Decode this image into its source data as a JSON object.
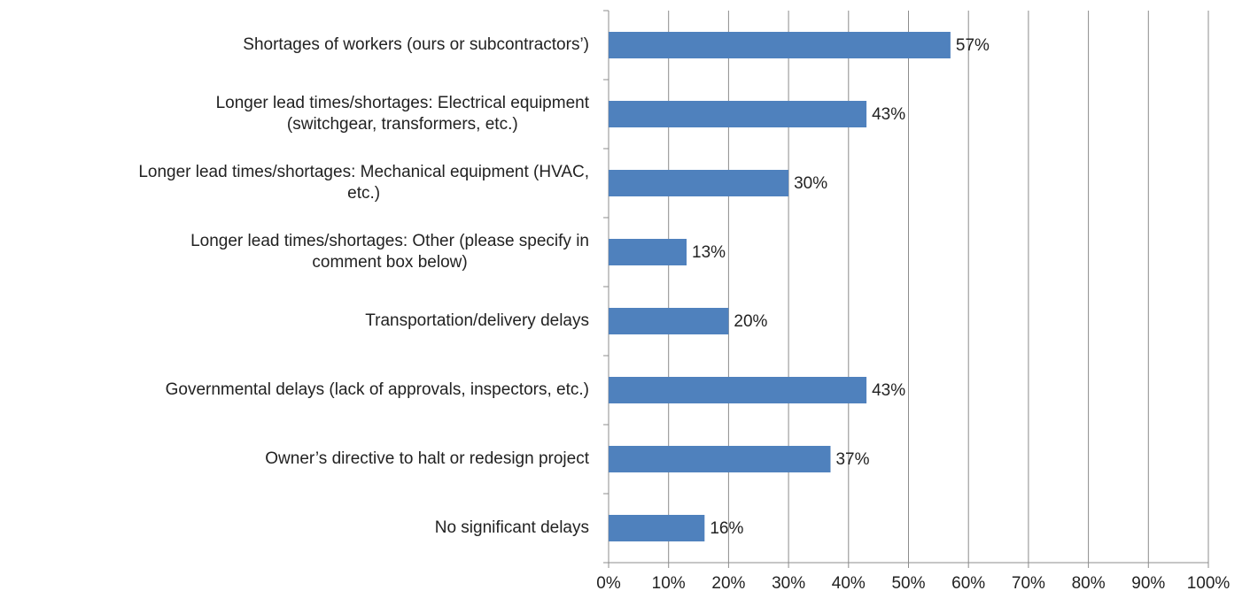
{
  "chart_data": {
    "type": "bar",
    "orientation": "horizontal",
    "categories": [
      "Shortages of workers (ours or subcontractors’)",
      "Longer lead times/shortages: Electrical equipment\n(switchgear, transformers, etc.)",
      "Longer lead times/shortages: Mechanical equipment (HVAC,\netc.)",
      "Longer lead times/shortages: Other (please specify in\ncomment box below)",
      "Transportation/delivery delays",
      "Governmental delays (lack of approvals, inspectors, etc.)",
      "Owner’s directive to halt or redesign project",
      "No significant delays"
    ],
    "values": [
      57,
      43,
      30,
      13,
      20,
      43,
      37,
      16
    ],
    "value_labels": [
      "57%",
      "43%",
      "30%",
      "13%",
      "20%",
      "43%",
      "37%",
      "16%"
    ],
    "color": "#4f81bd",
    "xlim": [
      0,
      100
    ],
    "xticks": [
      {
        "value": 0,
        "label": "0%"
      },
      {
        "value": 10,
        "label": "10%"
      },
      {
        "value": 20,
        "label": "20%"
      },
      {
        "value": 30,
        "label": "30%"
      },
      {
        "value": 40,
        "label": "40%"
      },
      {
        "value": 50,
        "label": "50%"
      },
      {
        "value": 60,
        "label": "60%"
      },
      {
        "value": 70,
        "label": "70%"
      },
      {
        "value": 80,
        "label": "80%"
      },
      {
        "value": 90,
        "label": "90%"
      },
      {
        "value": 100,
        "label": "100%"
      }
    ],
    "grid": true
  }
}
